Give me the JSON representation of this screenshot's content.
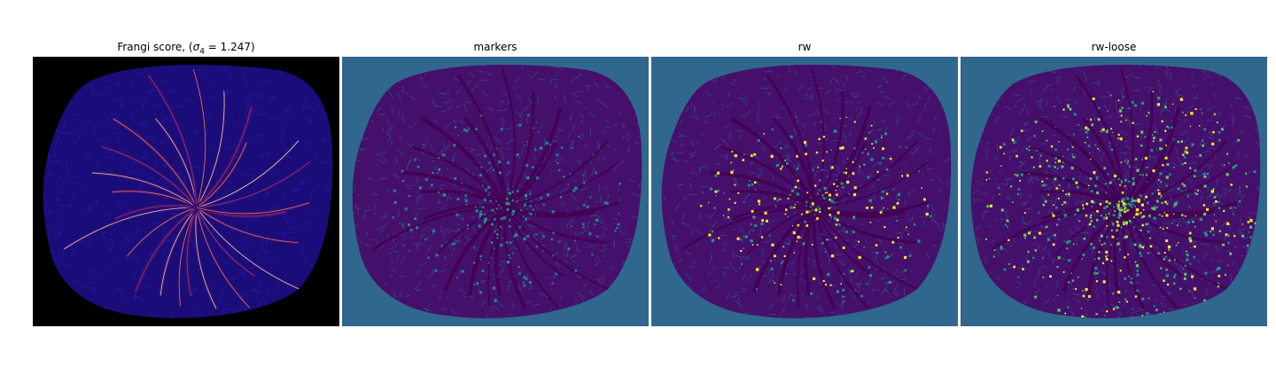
{
  "figure": {
    "panels": [
      {
        "title_prefix": "Frangi score, (",
        "sigma_symbol": "σ",
        "sigma_subscript": "4",
        "title_suffix": " = 1.247)",
        "background": "#000000",
        "fill": "#1a0d7a",
        "vessel_color": "#3b0f70",
        "highlight_colors": [
          "#b5367a",
          "#fb8861",
          "#fcfdbf"
        ]
      },
      {
        "title": "markers",
        "background": "#30678d",
        "fill": "#45106c",
        "vessel_color": "#440154",
        "highlight_colors": [
          "#21918c",
          "#2a788e"
        ]
      },
      {
        "title": "rw",
        "background": "#30678d",
        "fill": "#45106c",
        "vessel_color": "#440154",
        "highlight_colors": [
          "#21918c",
          "#fde725"
        ]
      },
      {
        "title": "rw-loose",
        "background": "#30678d",
        "fill": "#45106c",
        "vessel_color": "#440154",
        "highlight_colors": [
          "#fde725",
          "#21918c",
          "#5ec962"
        ]
      }
    ]
  }
}
